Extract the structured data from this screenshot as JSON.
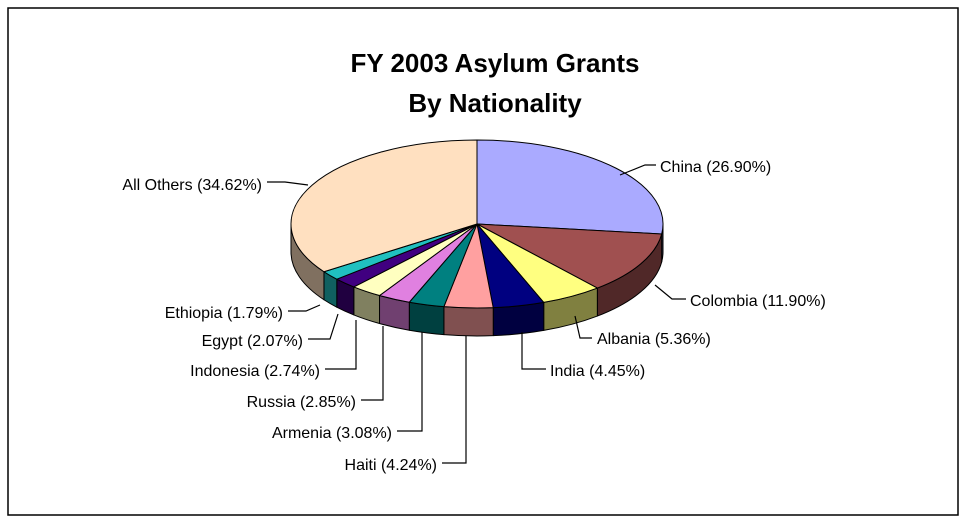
{
  "chart_data": {
    "type": "pie",
    "title": "FY 2003 Asylum Grants",
    "subtitle": "By Nationality",
    "slices": [
      {
        "name": "China",
        "value": 26.9,
        "label": "China (26.90%)",
        "color": "#aaaaff"
      },
      {
        "name": "Colombia",
        "value": 11.9,
        "label": "Colombia (11.90%)",
        "color": "#a05050"
      },
      {
        "name": "Albania",
        "value": 5.36,
        "label": "Albania (5.36%)",
        "color": "#ffff80"
      },
      {
        "name": "India",
        "value": 4.45,
        "label": "India (4.45%)",
        "color": "#000080"
      },
      {
        "name": "Haiti",
        "value": 4.24,
        "label": "Haiti (4.24%)",
        "color": "#ffa0a0"
      },
      {
        "name": "Armenia",
        "value": 3.08,
        "label": "Armenia (3.08%)",
        "color": "#008080"
      },
      {
        "name": "Russia",
        "value": 2.85,
        "label": "Russia (2.85%)",
        "color": "#e080e0"
      },
      {
        "name": "Indonesia",
        "value": 2.74,
        "label": "Indonesia (2.74%)",
        "color": "#ffffc0"
      },
      {
        "name": "Egypt",
        "value": 2.07,
        "label": "Egypt (2.07%)",
        "color": "#400080"
      },
      {
        "name": "Ethiopia",
        "value": 1.79,
        "label": "Ethiopia (1.79%)",
        "color": "#20c0c0"
      },
      {
        "name": "All Others",
        "value": 34.62,
        "label": "All Others (34.62%)",
        "color": "#ffe0c0"
      }
    ],
    "style": "3d-pie",
    "legend": "none (data labels with leader lines)"
  }
}
